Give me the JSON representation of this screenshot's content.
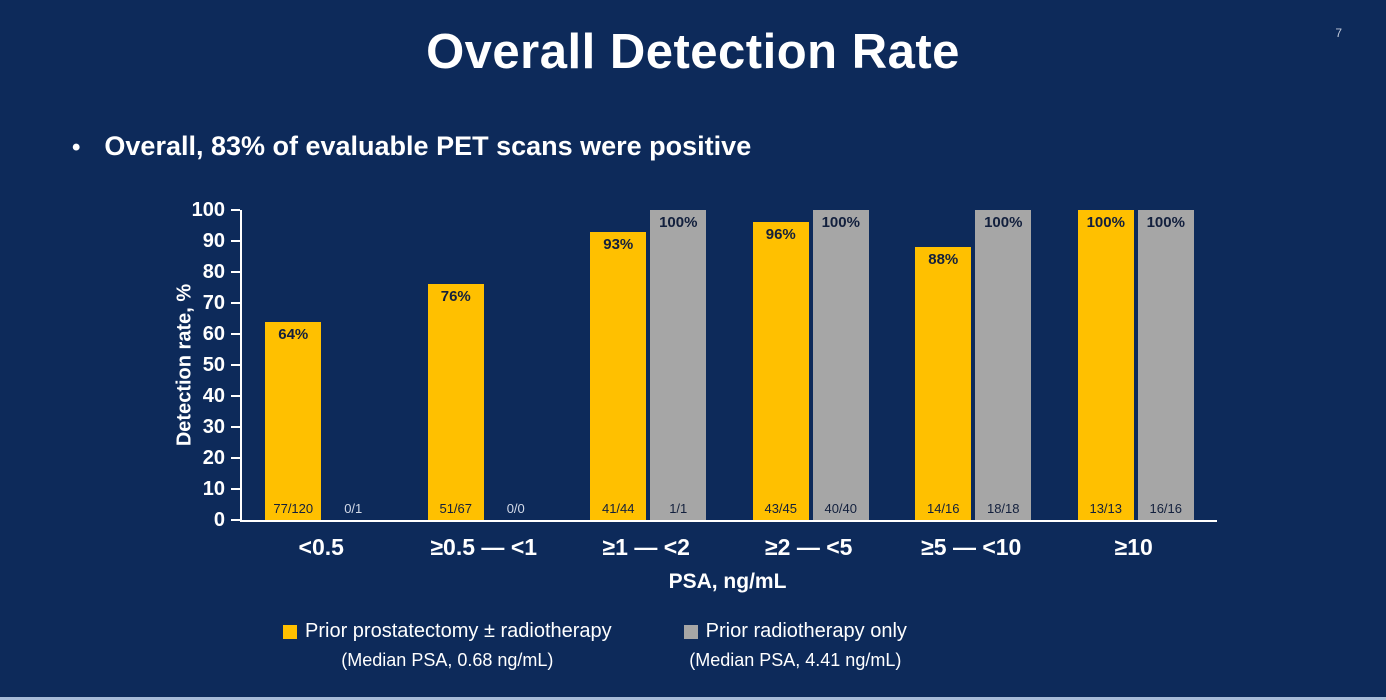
{
  "slide": {
    "page_number": "7",
    "title": "Overall Detection Rate",
    "bullet": "Overall, 83% of evaluable PET scans were positive"
  },
  "chart_data": {
    "type": "bar",
    "title": "Overall Detection Rate",
    "xlabel": "PSA, ng/mL",
    "ylabel": "Detection rate, %",
    "ylim": [
      0,
      100
    ],
    "ytick_step": 10,
    "grid": false,
    "legend_position": "bottom",
    "categories": [
      "<0.5",
      "≥0.5 — <1",
      "≥1 — <2",
      "≥2 — <5",
      "≥5 — <10",
      "≥10"
    ],
    "series": [
      {
        "name": "Prior prostatectomy ± radiotherapy",
        "subtitle": "(Median PSA, 0.68 ng/mL)",
        "color": "#FFC000",
        "values": [
          64,
          76,
          93,
          96,
          88,
          100
        ],
        "percent_labels": [
          "64%",
          "76%",
          "93%",
          "96%",
          "88%",
          "100%"
        ],
        "fraction_labels": [
          "77/120",
          "51/67",
          "41/44",
          "43/45",
          "14/16",
          "13/13"
        ]
      },
      {
        "name": "Prior radiotherapy only",
        "subtitle": "(Median PSA, 4.41 ng/mL)",
        "color": "#A6A6A6",
        "values": [
          0,
          0,
          100,
          100,
          100,
          100
        ],
        "percent_labels": [
          "",
          "",
          "100%",
          "100%",
          "100%",
          "100%"
        ],
        "fraction_labels": [
          "0/1",
          "0/0",
          "1/1",
          "40/40",
          "18/18",
          "16/16"
        ]
      }
    ]
  },
  "colors": {
    "background": "#0D2A5A",
    "bar_yellow": "#FFC000",
    "bar_gray": "#A6A6A6",
    "text": "#FFFFFF",
    "bar_label_dark": "#13203D",
    "axis": "#FFFFFF"
  }
}
